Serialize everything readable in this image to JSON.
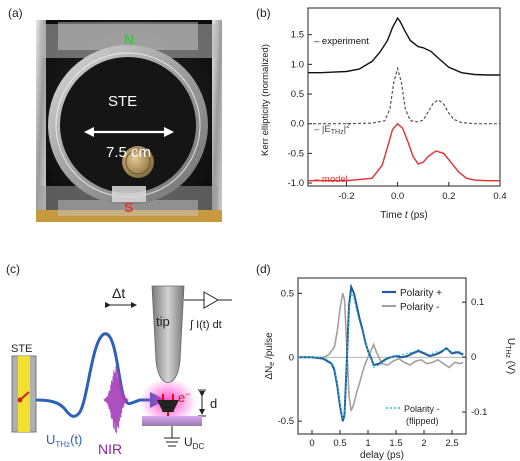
{
  "panel_labels": {
    "a": "(a)",
    "b": "(b)",
    "c": "(c)",
    "d": "(d)"
  },
  "photo": {
    "north": "N",
    "south": "S",
    "center": "STE",
    "diameter": "7.5 cm"
  },
  "schematic": {
    "ste": "STE",
    "delta_t": "Δt",
    "pulse_thz_main": "U",
    "pulse_thz_sub": "THz",
    "pulse_thz_tail": "(t)",
    "nir": "NIR",
    "tip": "tip",
    "integral": "∫ I(t) dt",
    "electron": "e",
    "electron_sup": "−",
    "gap": "d",
    "udc_main": "U",
    "udc_sub": "DC"
  },
  "chart_data": [
    {
      "type": "line",
      "panel": "b",
      "title": "",
      "xlabel_main": "Time ",
      "xlabel_var": "t",
      "xlabel_unit": " (ps)",
      "ylabel": "Kerr ellipticity (normalized)",
      "xlim": [
        -0.35,
        0.4
      ],
      "ylim": [
        -1.05,
        1.95
      ],
      "xticks": [
        "-0.2",
        "0.0",
        "0.2",
        "0.4"
      ],
      "yticks": [
        "-1.0",
        "-0.5",
        "0.0",
        "0.5",
        "1.0",
        "1.5"
      ],
      "xtick_values": [
        -0.2,
        0.0,
        0.2,
        0.4
      ],
      "ytick_values": [
        -1.0,
        -0.5,
        0.0,
        0.5,
        1.0,
        1.5
      ],
      "legend_experiment": "– experiment",
      "legend_ethz_pre": "– |E",
      "legend_ethz_sub": "THz",
      "legend_ethz_post": "|",
      "legend_ethz_sup": "2",
      "legend_model": "– model",
      "colors": {
        "experiment": "#111111",
        "ethz": "#555555",
        "model": "#e03030"
      },
      "series": [
        {
          "key": "experiment",
          "x": [
            -0.35,
            -0.3,
            -0.25,
            -0.2,
            -0.15,
            -0.1,
            -0.07,
            -0.04,
            -0.02,
            0.0,
            0.01,
            0.03,
            0.05,
            0.08,
            0.1,
            0.13,
            0.16,
            0.2,
            0.25,
            0.3,
            0.35,
            0.4
          ],
          "y": [
            0.86,
            0.86,
            0.87,
            0.88,
            0.92,
            1.05,
            1.2,
            1.4,
            1.62,
            1.78,
            1.72,
            1.55,
            1.4,
            1.3,
            1.28,
            1.22,
            1.1,
            0.95,
            0.86,
            0.83,
            0.82,
            0.82
          ]
        },
        {
          "key": "ethz",
          "x": [
            -0.35,
            -0.2,
            -0.1,
            -0.05,
            -0.03,
            -0.015,
            0.0,
            0.015,
            0.03,
            0.05,
            0.08,
            0.1,
            0.12,
            0.14,
            0.16,
            0.18,
            0.2,
            0.22,
            0.25,
            0.3,
            0.35,
            0.4
          ],
          "y": [
            0.0,
            0.0,
            0.01,
            0.05,
            0.25,
            0.7,
            0.93,
            0.7,
            0.25,
            0.05,
            0.03,
            0.06,
            0.2,
            0.35,
            0.4,
            0.33,
            0.18,
            0.07,
            0.02,
            0.0,
            0.0,
            0.0
          ]
        },
        {
          "key": "model",
          "x": [
            -0.35,
            -0.2,
            -0.1,
            -0.06,
            -0.04,
            -0.02,
            0.0,
            0.02,
            0.04,
            0.06,
            0.08,
            0.1,
            0.12,
            0.15,
            0.18,
            0.21,
            0.24,
            0.27,
            0.3,
            0.35,
            0.4
          ],
          "y": [
            -0.96,
            -0.96,
            -0.92,
            -0.7,
            -0.4,
            -0.1,
            0.0,
            -0.08,
            -0.3,
            -0.55,
            -0.68,
            -0.65,
            -0.55,
            -0.46,
            -0.5,
            -0.66,
            -0.82,
            -0.92,
            -0.95,
            -0.96,
            -0.96
          ]
        }
      ]
    },
    {
      "type": "line",
      "panel": "d",
      "title": "",
      "xlabel": "delay (ps)",
      "ylabel_left_main": "ΔN",
      "ylabel_left_sub": "e",
      "ylabel_left_tail": " /pulse",
      "ylabel_right_main": "U",
      "ylabel_right_sub": "THz",
      "ylabel_right_tail": " (V)",
      "xlim": [
        -0.25,
        2.75
      ],
      "ylim_left": [
        -0.6,
        0.62
      ],
      "ylim_right": [
        -0.14,
        0.144
      ],
      "xticks": [
        "0",
        "0.5",
        "1",
        "1.5",
        "2",
        "2.5"
      ],
      "xtick_values": [
        0,
        0.5,
        1.0,
        1.5,
        2.0,
        2.5
      ],
      "yticks_left": [
        "0.5",
        "0",
        "-0.5"
      ],
      "ytick_left_values": [
        0.5,
        0,
        -0.5
      ],
      "yticks_right": [
        "0.1",
        "0",
        "-0.1"
      ],
      "ytick_right_values": [
        0.1,
        0,
        -0.1
      ],
      "legend_plus": "Polarity +",
      "legend_minus": "Polarity -",
      "legend_flipped_1": "Polarity -",
      "legend_flipped_2": "(flipped)",
      "colors": {
        "plus": "#1f5a99",
        "minus": "#a89e9e",
        "flipped": "#35b7c9"
      },
      "series": [
        {
          "key": "plus",
          "x": [
            -0.25,
            0.0,
            0.2,
            0.35,
            0.4,
            0.45,
            0.5,
            0.55,
            0.58,
            0.62,
            0.66,
            0.7,
            0.75,
            0.8,
            0.85,
            0.9,
            0.95,
            1.0,
            1.05,
            1.1,
            1.2,
            1.3,
            1.4,
            1.5,
            1.6,
            1.7,
            1.8,
            1.9,
            2.0,
            2.1,
            2.2,
            2.3,
            2.4,
            2.5,
            2.6,
            2.7
          ],
          "y": [
            0.0,
            0.0,
            -0.01,
            -0.05,
            -0.1,
            -0.22,
            -0.38,
            -0.5,
            -0.45,
            -0.05,
            0.4,
            0.55,
            0.5,
            0.4,
            0.3,
            0.22,
            0.12,
            0.05,
            0.0,
            -0.06,
            -0.05,
            -0.02,
            0.0,
            0.01,
            0.0,
            0.01,
            0.03,
            0.05,
            0.03,
            0.01,
            0.02,
            0.04,
            0.07,
            0.03,
            0.04,
            0.02
          ]
        },
        {
          "key": "minus",
          "x": [
            -0.25,
            0.0,
            0.2,
            0.3,
            0.35,
            0.4,
            0.45,
            0.5,
            0.55,
            0.58,
            0.62,
            0.66,
            0.7,
            0.75,
            0.8,
            0.85,
            0.9,
            0.95,
            1.0,
            1.05,
            1.1,
            1.15,
            1.25,
            1.35,
            1.45,
            1.55,
            1.65,
            1.75,
            1.85,
            1.95,
            2.05,
            2.15,
            2.25,
            2.35,
            2.45,
            2.55,
            2.65,
            2.7
          ],
          "y": [
            0.0,
            0.0,
            0.0,
            0.02,
            0.05,
            0.08,
            0.2,
            0.38,
            0.5,
            0.45,
            0.1,
            -0.3,
            -0.42,
            -0.36,
            -0.27,
            -0.2,
            -0.12,
            -0.05,
            0.0,
            0.05,
            0.1,
            0.04,
            -0.05,
            -0.06,
            -0.03,
            -0.01,
            -0.04,
            -0.06,
            -0.03,
            -0.02,
            -0.05,
            -0.04,
            -0.02,
            -0.05,
            -0.08,
            -0.04,
            -0.05,
            -0.04
          ]
        },
        {
          "key": "flipped",
          "x": [
            -0.25,
            0.0,
            0.2,
            0.35,
            0.4,
            0.45,
            0.5,
            0.55,
            0.58,
            0.62,
            0.66,
            0.7,
            0.75,
            0.8,
            0.85,
            0.9,
            0.95,
            1.0,
            1.05,
            1.1,
            1.2,
            1.3,
            1.4,
            1.5,
            1.6,
            1.7,
            1.8,
            1.9,
            2.0,
            2.1,
            2.2,
            2.3,
            2.4,
            2.5,
            2.6,
            2.7
          ],
          "y": [
            0.0,
            0.0,
            0.0,
            -0.04,
            -0.08,
            -0.2,
            -0.36,
            -0.48,
            -0.44,
            -0.08,
            0.36,
            0.5,
            0.46,
            0.36,
            0.27,
            0.2,
            0.12,
            0.05,
            0.0,
            -0.08,
            -0.06,
            -0.03,
            0.0,
            0.01,
            0.02,
            0.03,
            0.04,
            0.06,
            0.04,
            0.02,
            0.04,
            0.05,
            0.06,
            0.04,
            0.05,
            0.03
          ]
        }
      ]
    }
  ]
}
